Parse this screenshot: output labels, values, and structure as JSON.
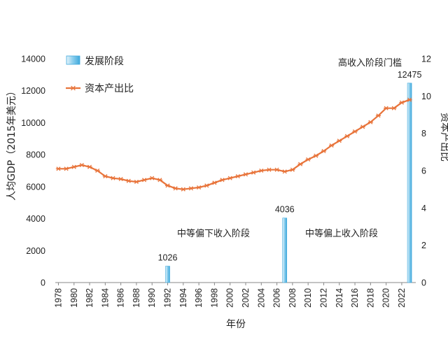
{
  "colors": {
    "bar_light": "#e6f4fb",
    "bar_mid": "#8fd0ee",
    "bar_dark": "#3fa9dc",
    "line": "#e8743b",
    "axis": "#888888",
    "text": "#222222"
  },
  "chart_data": {
    "type": "bar+line",
    "xlabel": "年份",
    "ylabel_left": "人均GDP（2015年美元）",
    "ylabel_right": "资本产出比",
    "ylim_left": [
      0,
      14000
    ],
    "yticks_left": [
      0,
      2000,
      4000,
      6000,
      8000,
      10000,
      12000,
      14000
    ],
    "ylim_right": [
      0,
      12
    ],
    "yticks_right": [
      0,
      2,
      4,
      6,
      8,
      10,
      12
    ],
    "xlim": [
      1977.6,
      2023.8
    ],
    "xticks": [
      "1978",
      "1980",
      "1982",
      "1984",
      "1986",
      "1988",
      "1990",
      "1992",
      "1994",
      "1996",
      "1998",
      "2000",
      "2002",
      "2004",
      "2006",
      "2008",
      "2010",
      "2012",
      "2014",
      "2016",
      "2018",
      "2020",
      "2022"
    ],
    "legend": [
      {
        "label": "发展阶段",
        "kind": "bar"
      },
      {
        "label": "资本产出比",
        "kind": "line"
      }
    ],
    "bars": {
      "name": "发展阶段",
      "points": [
        {
          "year": 1992,
          "value": 1026,
          "label": "1026"
        },
        {
          "year": 2007,
          "value": 4036,
          "label": "4036"
        },
        {
          "year": 2023,
          "value": 12475,
          "label": "12475"
        }
      ]
    },
    "line": {
      "name": "资本产出比",
      "x": [
        1978,
        1979,
        1980,
        1981,
        1982,
        1983,
        1984,
        1985,
        1986,
        1987,
        1988,
        1989,
        1990,
        1991,
        1992,
        1993,
        1994,
        1995,
        1996,
        1997,
        1998,
        1999,
        2000,
        2001,
        2002,
        2003,
        2004,
        2005,
        2006,
        2007,
        2008,
        2009,
        2010,
        2011,
        2012,
        2013,
        2014,
        2015,
        2016,
        2017,
        2018,
        2019,
        2020,
        2021,
        2022,
        2023
      ],
      "values": [
        6.1,
        6.1,
        6.2,
        6.3,
        6.2,
        6.0,
        5.7,
        5.6,
        5.55,
        5.45,
        5.4,
        5.5,
        5.6,
        5.5,
        5.2,
        5.05,
        5.0,
        5.05,
        5.1,
        5.2,
        5.35,
        5.5,
        5.6,
        5.7,
        5.8,
        5.9,
        6.0,
        6.05,
        6.05,
        5.95,
        6.05,
        6.35,
        6.6,
        6.8,
        7.05,
        7.35,
        7.6,
        7.85,
        8.1,
        8.35,
        8.6,
        8.95,
        9.35,
        9.35,
        9.65,
        9.8
      ]
    },
    "annotations": [
      {
        "text": "中等偏下收入阶段"
      },
      {
        "text": "中等偏上收入阶段"
      },
      {
        "text": "高收入阶段门槛"
      }
    ]
  }
}
